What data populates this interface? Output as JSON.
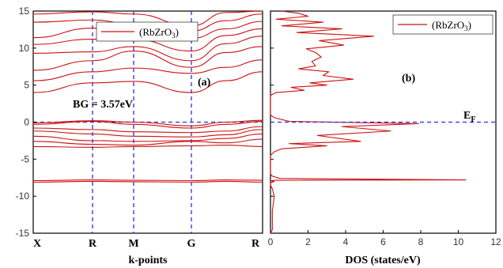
{
  "chart_data": [
    {
      "panel": "a",
      "type": "line",
      "title": "",
      "xlabel": "k-points",
      "ylabel": "",
      "x_ticks": [
        "X",
        "R",
        "M",
        "G",
        "R"
      ],
      "ylim": [
        -15,
        15
      ],
      "y_ticks": [
        -15,
        -10,
        -5,
        0,
        5,
        10,
        15
      ],
      "legend": "(RbZrO3)",
      "legend_position": "top-right",
      "annotations": {
        "band_gap": "BG = 3.57eV",
        "panel_label": "(a)"
      },
      "series": [
        {
          "values": [
            -7.9,
            -7.8,
            -7.85,
            -7.9,
            -7.8,
            -7.85
          ]
        },
        {
          "values": [
            -8.1,
            -8.0,
            -8.05,
            -8.1,
            -8.0,
            -8.1
          ]
        },
        {
          "values": [
            -3.3,
            -3.4,
            -3.3,
            -3.2,
            -3.1,
            -3.3
          ]
        },
        {
          "values": [
            -2.6,
            -3.0,
            -3.1,
            -2.6,
            -2.8,
            -2.3
          ]
        },
        {
          "values": [
            -1.9,
            -2.5,
            -2.6,
            -2.5,
            -2.2,
            -1.6
          ]
        },
        {
          "values": [
            -1.2,
            -1.6,
            -1.9,
            -2.0,
            -1.7,
            -1.0
          ]
        },
        {
          "values": [
            -0.8,
            -1.0,
            -1.3,
            -1.4,
            -1.2,
            -0.6
          ]
        },
        {
          "values": [
            -0.3,
            0.1,
            -0.3,
            -0.8,
            -0.3,
            0.1
          ]
        },
        {
          "values": [
            -0.1,
            0.2,
            0.0,
            -0.5,
            0.0,
            0.25
          ]
        },
        {
          "values": [
            4.0,
            5.3,
            5.5,
            4.0,
            5.6,
            6.8
          ]
        },
        {
          "values": [
            5.6,
            6.8,
            7.3,
            6.6,
            7.4,
            8.4
          ]
        },
        {
          "values": [
            7.0,
            8.3,
            9.6,
            7.4,
            9.4,
            10.2
          ]
        },
        {
          "values": [
            9.3,
            9.5,
            10.2,
            8.3,
            10.6,
            11.6
          ]
        },
        {
          "values": [
            10.5,
            11.2,
            11.2,
            9.6,
            11.7,
            12.6
          ]
        },
        {
          "values": [
            11.4,
            12.7,
            12.4,
            11.3,
            12.6,
            13.6
          ]
        },
        {
          "values": [
            13.5,
            13.8,
            13.2,
            12.3,
            13.7,
            14.6
          ]
        },
        {
          "values": [
            14.6,
            14.9,
            14.6,
            13.0,
            14.8,
            15.0
          ]
        }
      ],
      "fermi_level": 0,
      "color": "#cc1111"
    },
    {
      "panel": "b",
      "type": "line",
      "title": "",
      "xlabel": "DOS (states/eV)",
      "ylabel": "",
      "xlim": [
        0,
        12
      ],
      "x_ticks": [
        0,
        2,
        4,
        6,
        8,
        10,
        12
      ],
      "ylim": [
        -15,
        15
      ],
      "legend": "(RbZrO3)",
      "legend_position": "top-right",
      "annotations": {
        "panel_label": "(b)",
        "fermi_label": "EF"
      },
      "series": [
        {
          "x": [
            0.0,
            0.1,
            0.1,
            0.2,
            0.1,
            0.0,
            0.0,
            0.2,
            0.0,
            0.3,
            10.4,
            0.5,
            0.1,
            0.0,
            0.0,
            0.0,
            0.2,
            0.6,
            3.0,
            1.0,
            4.8,
            2.5,
            6.4,
            3.8,
            7.9,
            1.0,
            0.2,
            0.0,
            0.0,
            0.0,
            0.3,
            1.8,
            1.1,
            3.0,
            2.1,
            4.4,
            2.8,
            3.1,
            1.5,
            2.4,
            2.2,
            2.7,
            2.4,
            1.9,
            3.9,
            2.6,
            5.5,
            1.4,
            3.8,
            0.6,
            2.8,
            0.3,
            2.0,
            1.5,
            0.6
          ],
          "y": [
            -15.0,
            -14.5,
            -12.0,
            -10.0,
            -9.0,
            -8.5,
            -8.2,
            -8.0,
            -7.9,
            -7.85,
            -7.8,
            -7.6,
            -7.3,
            -7.0,
            -5.5,
            -4.5,
            -4.0,
            -3.6,
            -3.2,
            -2.9,
            -2.6,
            -1.8,
            -1.2,
            -0.6,
            -0.2,
            0.1,
            0.6,
            1.0,
            2.5,
            3.6,
            4.0,
            4.3,
            4.7,
            5.0,
            5.3,
            5.8,
            6.3,
            6.8,
            7.2,
            7.6,
            8.2,
            8.8,
            9.4,
            9.9,
            10.4,
            11.0,
            11.6,
            12.1,
            12.6,
            13.0,
            13.5,
            13.9,
            14.3,
            14.7,
            15.0
          ]
        }
      ],
      "fermi_level": 0,
      "color": "#cc1111"
    }
  ]
}
